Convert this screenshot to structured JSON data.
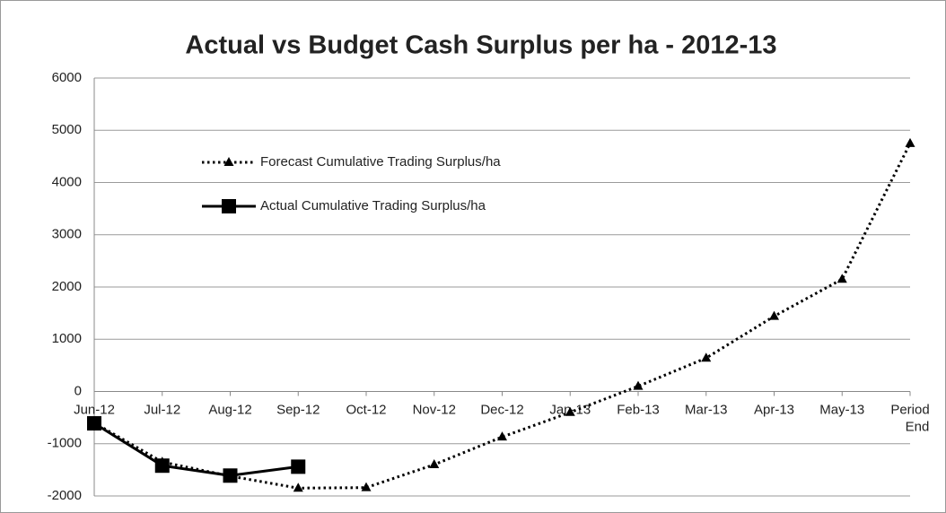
{
  "chart_data": {
    "type": "line",
    "title": "Actual vs Budget Cash Surplus per ha - 2012-13",
    "categories": [
      "Jun-12",
      "Jul-12",
      "Aug-12",
      "Sep-12",
      "Oct-12",
      "Nov-12",
      "Dec-12",
      "Jan-13",
      "Feb-13",
      "Mar-13",
      "Apr-13",
      "May-13",
      "Period End"
    ],
    "series": [
      {
        "name": "Forecast Cumulative Trading Surplus/ha",
        "color": "#000000",
        "style": "dotted",
        "marker": "triangle",
        "values": [
          -600,
          -1350,
          -1620,
          -1850,
          -1840,
          -1400,
          -870,
          -400,
          100,
          640,
          1440,
          2150,
          4750
        ]
      },
      {
        "name": "Actual Cumulative Trading Surplus/ha",
        "color": "#000000",
        "style": "solid",
        "marker": "square",
        "values": [
          -610,
          -1420,
          -1610,
          -1440,
          null,
          null,
          null,
          null,
          null,
          null,
          null,
          null,
          null
        ]
      }
    ],
    "ylim": [
      -2000,
      6000
    ],
    "yticks": [
      -2000,
      -1000,
      0,
      1000,
      2000,
      3000,
      4000,
      5000,
      6000
    ],
    "grid": true,
    "legend": "upper left"
  }
}
